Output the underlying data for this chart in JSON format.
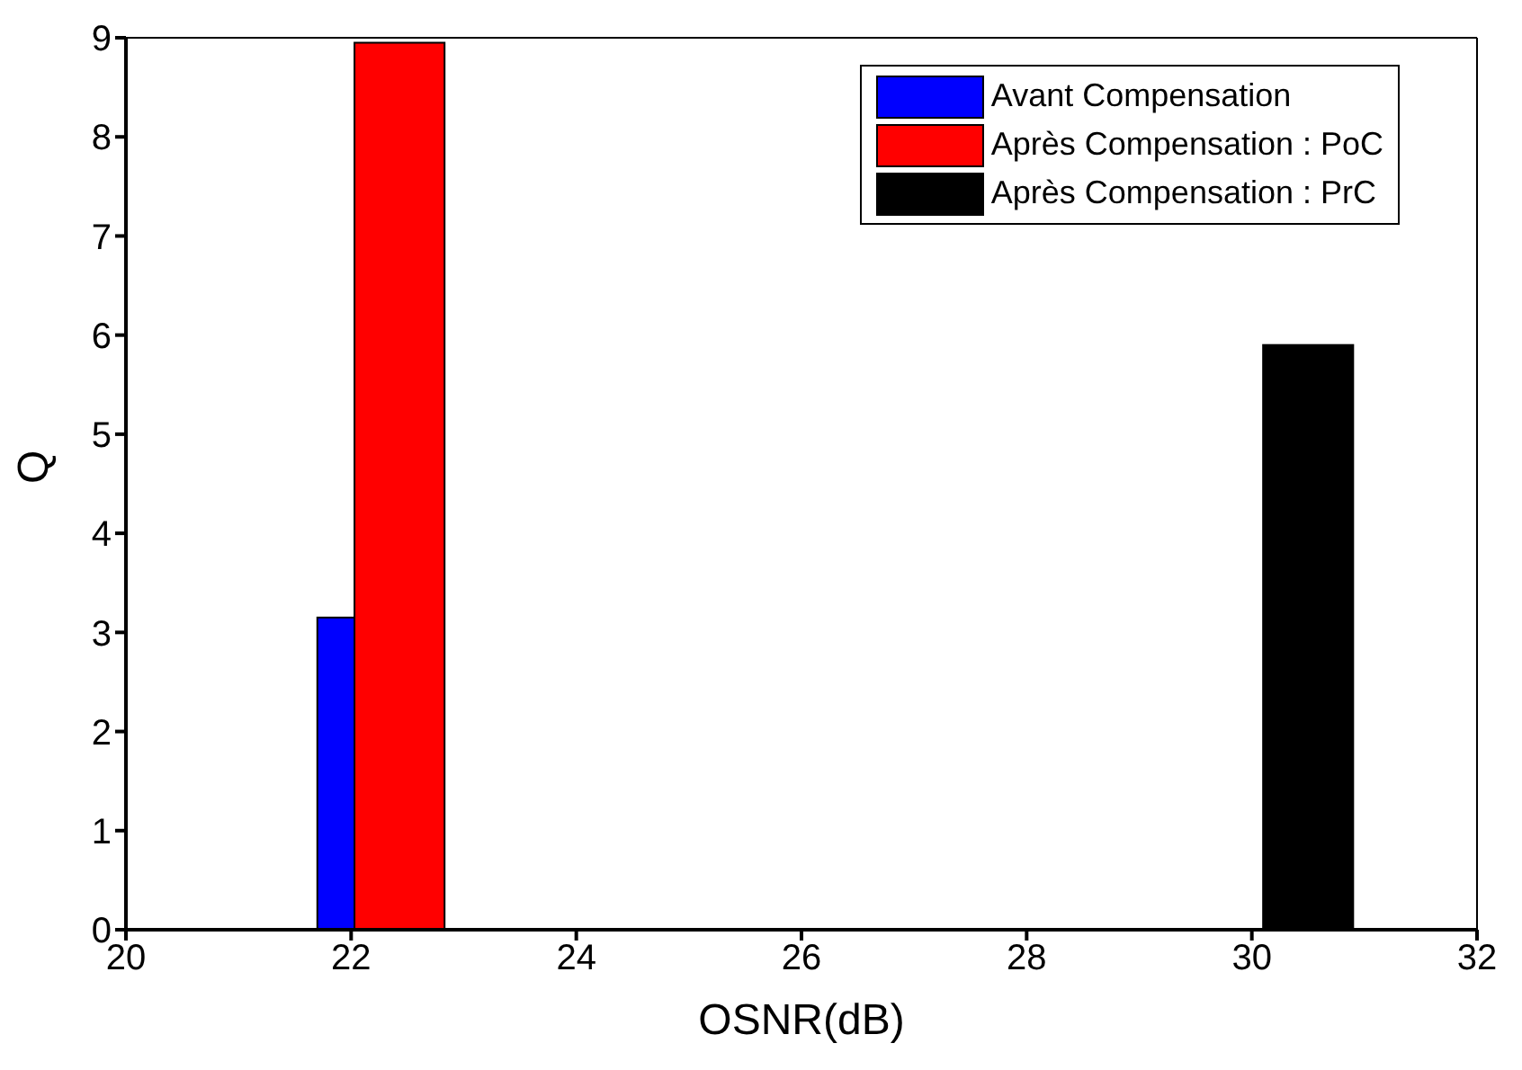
{
  "chart_data": {
    "type": "bar",
    "xlabel": "OSNR(dB)",
    "ylabel": "Q",
    "xlim": [
      20,
      32
    ],
    "xticks": [
      20,
      22,
      24,
      26,
      28,
      30,
      32
    ],
    "ylim": [
      0,
      9
    ],
    "yticks": [
      0,
      1,
      2,
      3,
      4,
      5,
      6,
      7,
      8,
      9
    ],
    "grid": false,
    "legend": "top right",
    "series": [
      {
        "name": "Avant Compensation",
        "color": "#0000ff",
        "x": [
          22.1
        ],
        "values": [
          3.15
        ]
      },
      {
        "name": "Après Compensation : PoC",
        "color": "#ff0000",
        "x": [
          22.43
        ],
        "values": [
          8.95
        ]
      },
      {
        "name": "Après Compensation : PrC",
        "color": "#000000",
        "x": [
          30.5
        ],
        "values": [
          5.9
        ]
      }
    ]
  }
}
